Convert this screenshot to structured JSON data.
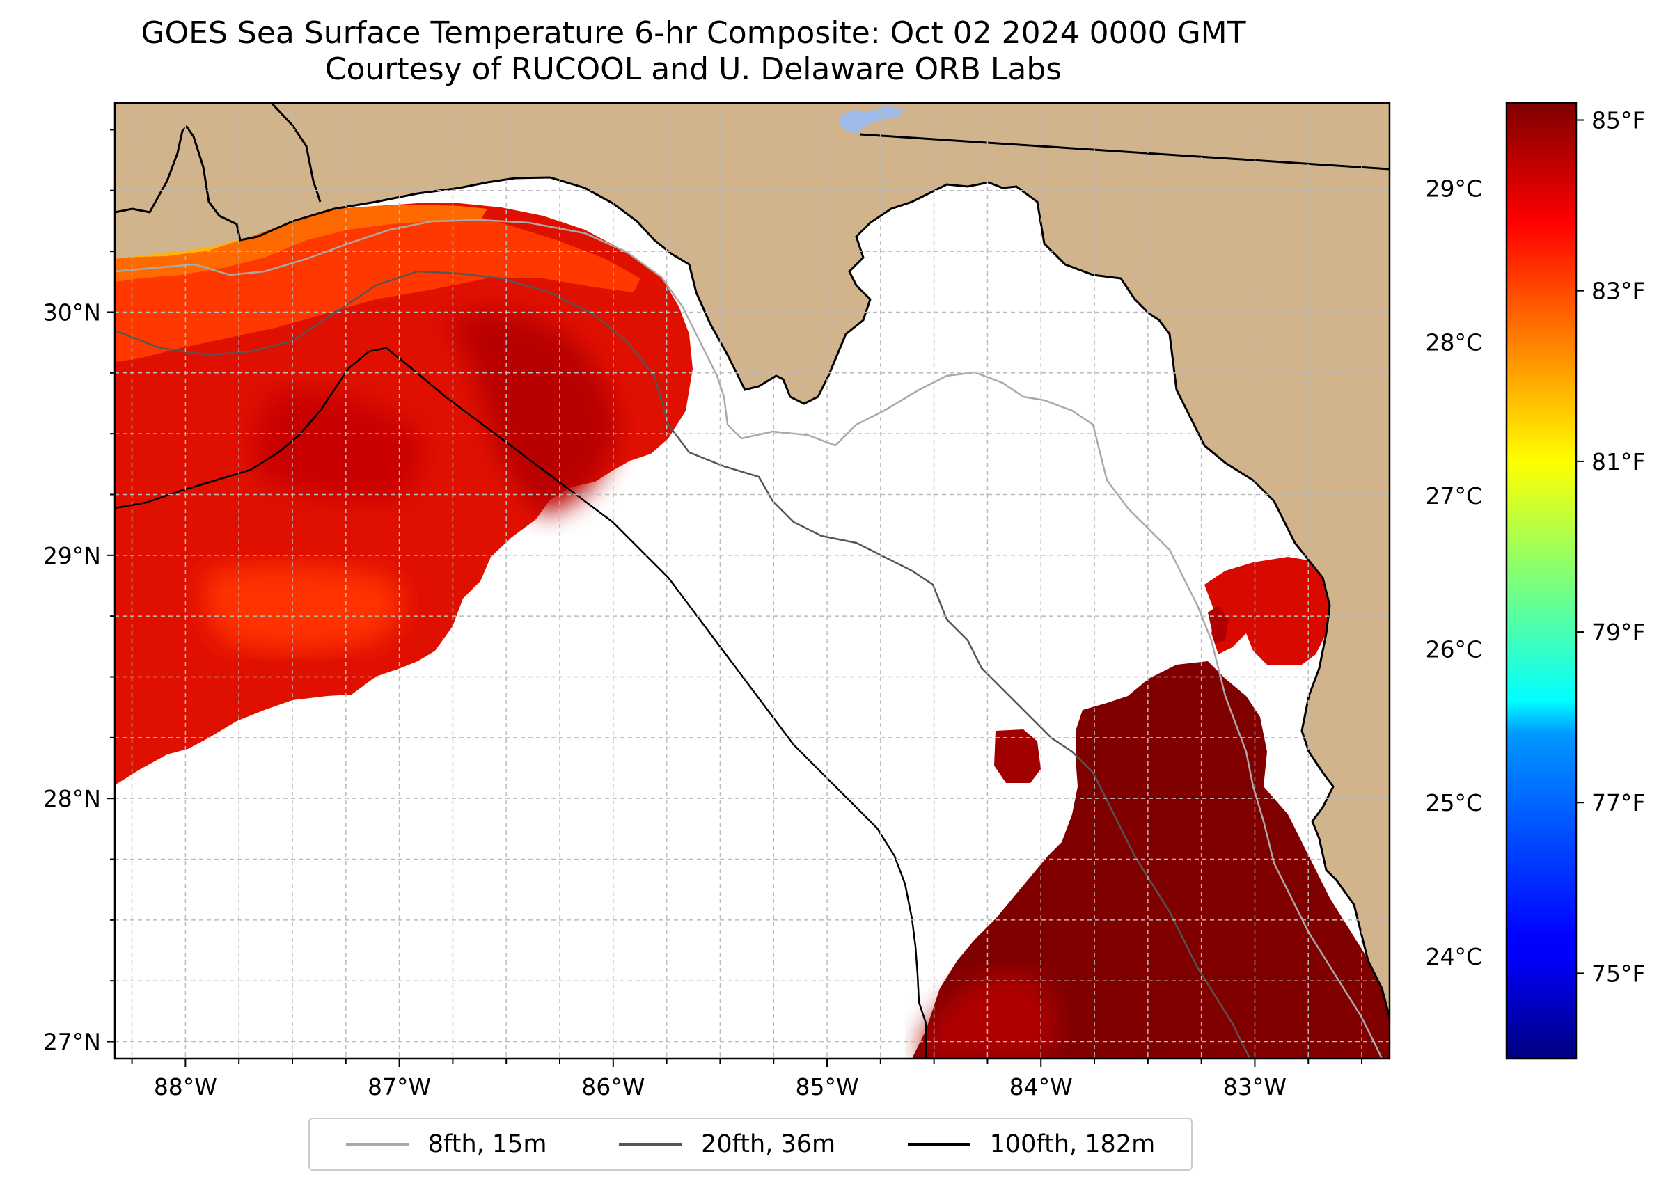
{
  "title": {
    "line1": "GOES Sea Surface Temperature 6-hr Composite: Oct 02 2024 0000 GMT",
    "line2": "Courtesy of RUCOOL and U. Delaware ORB Labs"
  },
  "map": {
    "lon_range": [
      -88.33,
      -82.37
    ],
    "lat_range": [
      26.93,
      30.86
    ],
    "x_ticks": [
      {
        "value": -88,
        "label": "88°W"
      },
      {
        "value": -87,
        "label": "87°W"
      },
      {
        "value": -86,
        "label": "86°W"
      },
      {
        "value": -85,
        "label": "85°W"
      },
      {
        "value": -84,
        "label": "84°W"
      },
      {
        "value": -83,
        "label": "83°W"
      }
    ],
    "y_ticks": [
      {
        "value": 27,
        "label": "27°N"
      },
      {
        "value": 28,
        "label": "28°N"
      },
      {
        "value": 29,
        "label": "29°N"
      },
      {
        "value": 30,
        "label": "30°N"
      }
    ],
    "grid": "dashed 0.25° grid",
    "colors": {
      "land": "#d2b48c",
      "water_no_data": "#ffffff",
      "lake": "#9ebae6",
      "coastline": "#000000",
      "grid": "#bbbbbb"
    }
  },
  "colorbar": {
    "colormap": "jet",
    "range_f": [
      74.0,
      85.2
    ],
    "celsius_ticks": [
      {
        "value": 24,
        "label": "24°C"
      },
      {
        "value": 25,
        "label": "25°C"
      },
      {
        "value": 26,
        "label": "26°C"
      },
      {
        "value": 27,
        "label": "27°C"
      },
      {
        "value": 28,
        "label": "28°C"
      },
      {
        "value": 29,
        "label": "29°C"
      }
    ],
    "fahrenheit_ticks": [
      {
        "value": 75,
        "label": "75°F"
      },
      {
        "value": 77,
        "label": "77°F"
      },
      {
        "value": 79,
        "label": "79°F"
      },
      {
        "value": 81,
        "label": "81°F"
      },
      {
        "value": 83,
        "label": "83°F"
      },
      {
        "value": 85,
        "label": "85°F"
      }
    ]
  },
  "legend": {
    "entries": [
      {
        "label": "8fth, 15m",
        "color": "#a9a9a9"
      },
      {
        "label": "20fth, 36m",
        "color": "#555555"
      },
      {
        "label": "100fth, 182m",
        "color": "#000000"
      }
    ]
  }
}
